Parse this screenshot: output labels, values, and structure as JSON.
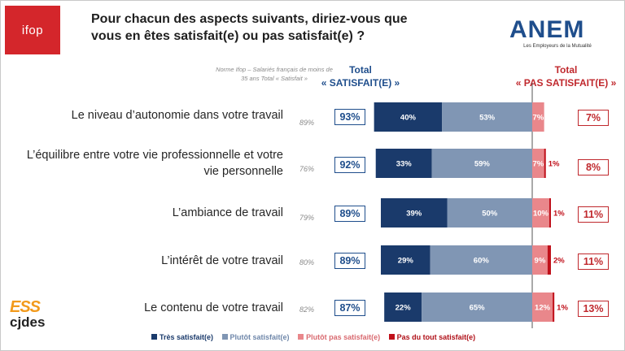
{
  "logos": {
    "ifop": "ifop",
    "anem": "ANEM",
    "anem_tagline": "Les Employeurs de la Mutualité",
    "ess": "ESS",
    "cjdes": "cjdes"
  },
  "title": "Pour chacun des aspects suivants, diriez-vous que vous en êtes satisfait(e) ou pas satisfait(e) ?",
  "norme_header": "Norme Ifop – Salariés français de moins de 35 ans Total « Satisfait »",
  "total_sat_header": [
    "Total",
    "« SATISFAIT(E) »"
  ],
  "total_pas_header": [
    "Total",
    "« PAS SATISFAIT(E) »"
  ],
  "rows": [
    {
      "label": "Le niveau d’autonomie dans votre travail",
      "norme": "89%",
      "total_sat": "93%",
      "total_pas": "7%"
    },
    {
      "label": "L’équilibre entre votre vie professionnelle et votre vie personnelle",
      "norme": "76%",
      "total_sat": "92%",
      "total_pas": "8%"
    },
    {
      "label": "L’ambiance de travail",
      "norme": "79%",
      "total_sat": "89%",
      "total_pas": "11%"
    },
    {
      "label": "L’intérêt de votre travail",
      "norme": "80%",
      "total_sat": "89%",
      "total_pas": "11%"
    },
    {
      "label": "Le contenu de votre travail",
      "norme": "82%",
      "total_sat": "87%",
      "total_pas": "13%"
    }
  ],
  "chart_data": {
    "type": "bar",
    "orientation": "horizontal-stacked-diverging",
    "title": "Pour chacun des aspects suivants, diriez-vous que vous en êtes satisfait(e) ou pas satisfait(e) ?",
    "categories": [
      "Le niveau d’autonomie dans votre travail",
      "L’équilibre entre votre vie professionnelle et votre vie personnelle",
      "L’ambiance de travail",
      "L’intérêt de votre travail",
      "Le contenu de votre travail"
    ],
    "series": [
      {
        "name": "Très satisfait(e)",
        "color": "#1a3a6b",
        "values": [
          40,
          33,
          39,
          29,
          22
        ]
      },
      {
        "name": "Plutôt satisfait(e)",
        "color": "#8096b4",
        "values": [
          53,
          59,
          50,
          60,
          65
        ]
      },
      {
        "name": "Plutôt pas satisfait(e)",
        "color": "#e9878b",
        "values": [
          7,
          7,
          10,
          9,
          12
        ]
      },
      {
        "name": "Pas du tout satisfait(e)",
        "color": "#c0101a",
        "values": [
          0,
          1,
          1,
          2,
          1
        ]
      }
    ],
    "data_labels": [
      [
        "40%",
        "53%",
        "7%",
        ""
      ],
      [
        "33%",
        "59%",
        "7%",
        "1%"
      ],
      [
        "39%",
        "50%",
        "10%",
        "1%"
      ],
      [
        "29%",
        "60%",
        "9%",
        "2%"
      ],
      [
        "22%",
        "65%",
        "12%",
        "1%"
      ]
    ],
    "legend": "bottom",
    "grid": false
  },
  "colors": {
    "accent_blue": "#1f4e8c",
    "accent_red": "#c0282d"
  }
}
